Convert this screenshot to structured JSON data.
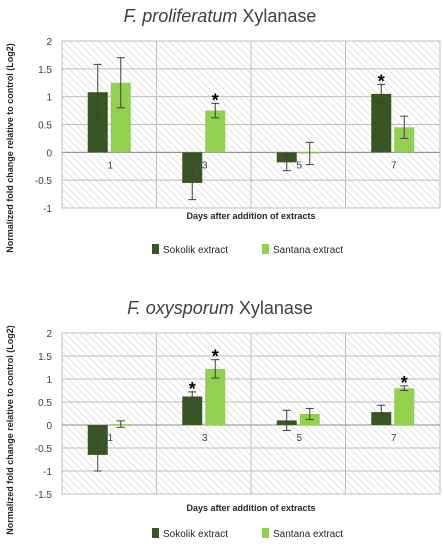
{
  "chart_data": [
    {
      "type": "bar",
      "title_italic": "F. proliferatum",
      "title_rest": " Xylanase",
      "xlabel": "Days after addition of extracts",
      "ylabel": "Normalized fold change  relative to control (Log2)",
      "ylim": [
        -1,
        2
      ],
      "ytick_labels": [
        "2",
        "1.5",
        "1",
        "0.5",
        "0",
        "-0.5",
        "-1"
      ],
      "categories": [
        "1",
        "3",
        "5",
        "7"
      ],
      "series": [
        {
          "name": "Sokolik extract",
          "color": "#375623",
          "values": [
            1.08,
            -0.55,
            -0.18,
            1.05
          ],
          "errors": [
            0.5,
            0.3,
            0.15,
            0.17
          ]
        },
        {
          "name": "Santana extract",
          "color": "#92d050",
          "values": [
            1.25,
            0.75,
            -0.02,
            0.45
          ],
          "errors": [
            0.45,
            0.13,
            0.2,
            0.2
          ]
        }
      ],
      "significance_marks": [
        {
          "series": 1,
          "category": 1,
          "label": "*"
        },
        {
          "series": 0,
          "category": 3,
          "label": "*"
        }
      ]
    },
    {
      "type": "bar",
      "title_italic": "F. oxysporum",
      "title_rest": " Xylanase",
      "xlabel": "Days after addition of extracts",
      "ylabel": "Normalized fold change  relative to control (Log2)",
      "ylim": [
        -1.5,
        2
      ],
      "ytick_labels": [
        "2",
        "1.5",
        "1",
        "0.5",
        "0",
        "-0.5",
        "-1",
        "-1.5"
      ],
      "categories": [
        "1",
        "3",
        "5",
        "7"
      ],
      "series": [
        {
          "name": "Sokolik extract",
          "color": "#375623",
          "values": [
            -0.65,
            0.62,
            0.1,
            0.28
          ],
          "errors": [
            0.35,
            0.1,
            0.22,
            0.15
          ]
        },
        {
          "name": "Santana extract",
          "color": "#92d050",
          "values": [
            0.02,
            1.22,
            0.24,
            0.8
          ],
          "errors": [
            0.07,
            0.2,
            0.12,
            0.05
          ]
        }
      ],
      "significance_marks": [
        {
          "series": 0,
          "category": 1,
          "label": "*"
        },
        {
          "series": 1,
          "category": 1,
          "label": "*"
        },
        {
          "series": 1,
          "category": 3,
          "label": "*"
        }
      ]
    }
  ]
}
